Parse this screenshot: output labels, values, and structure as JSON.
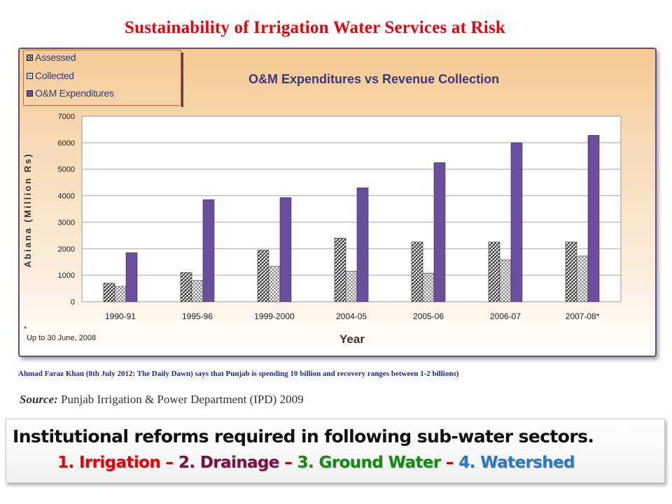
{
  "slide": {
    "title": "Sustainability of Irrigation Water Services at Risk",
    "citation": "Ahmad Faraz Khan (8th July 2012: The Daily Dawn) says that Punjab is spending 10 billion and recovery ranges between 1-2 billions)",
    "source_label": "Source:",
    "source_text": " Punjab Irrigation & Power Department (IPD) 2009",
    "reform_heading": "Institutional reforms required in following sub-water sectors.",
    "reforms": [
      {
        "text": "1. Irrigation",
        "color": "#e8000b"
      },
      {
        "text": " – ",
        "color": "#c00000"
      },
      {
        "text": "2. Drainage",
        "color": "#7a1046"
      },
      {
        "text": " – ",
        "color": "#c00000"
      },
      {
        "text": "3. Ground Water",
        "color": "#118c0f"
      },
      {
        "text": " – ",
        "color": "#c00000"
      },
      {
        "text": "4. Watershed",
        "color": "#2a78c0"
      }
    ]
  },
  "chart_data": {
    "type": "bar",
    "title": "O&M Expenditures vs Revenue Collection",
    "xlabel": "Year",
    "ylabel": "Abiana (Million Rs)",
    "categories": [
      "1990-91",
      "1995-96",
      "1999-2000",
      "2004-05",
      "2005-06",
      "2006-07",
      "2007-08*"
    ],
    "series": [
      {
        "name": "Assessed",
        "values": [
          700,
          1100,
          1950,
          2400,
          2250,
          2250,
          2250
        ],
        "color": "#ffffff",
        "pattern": "crosshatch-dark"
      },
      {
        "name": "Collected",
        "values": [
          580,
          800,
          1330,
          1150,
          1080,
          1580,
          1720
        ],
        "color": "#ffffff",
        "pattern": "crosshatch-light"
      },
      {
        "name": "O&M Expenditures",
        "values": [
          1850,
          3850,
          3930,
          4300,
          5250,
          6000,
          6280
        ],
        "color": "#6a4f9e"
      }
    ],
    "ylim": [
      0,
      7000
    ],
    "yticks": [
      0,
      1000,
      2000,
      3000,
      4000,
      5000,
      6000,
      7000
    ],
    "grid": true,
    "legend_position": "top-left",
    "footnote": "Up to 30 June, 2008"
  }
}
